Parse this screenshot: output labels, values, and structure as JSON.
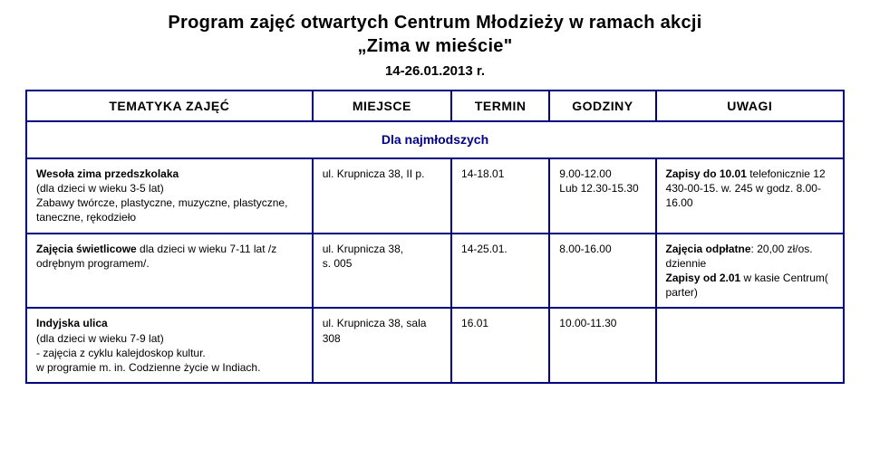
{
  "header": {
    "title_line1": "Program zajęć otwartych Centrum Młodzieży w ramach akcji",
    "title_line2": "„Zima w mieście\"",
    "date_range": "14-26.01.2013 r."
  },
  "table": {
    "columns": [
      "TEMATYKA ZAJĘĆ",
      "MIEJSCE",
      "TERMIN",
      "GODZINY",
      "UWAGI"
    ],
    "section_label": "Dla najmłodszych",
    "rows": [
      {
        "topic_bold": "Wesoła zima przedszkolaka",
        "topic_rest": "(dla dzieci  w wieku 3-5 lat)\nZabawy twórcze, plastyczne, muzyczne,  plastyczne, taneczne, rękodzieło",
        "place": "ul. Krupnicza 38, II p.",
        "term": "14-18.01",
        "hours": "9.00-12.00\nLub 12.30-15.30",
        "notes_bold": "Zapisy do 10.01",
        "notes_rest": " telefonicznie 12 430-00-15. w. 245 w godz. 8.00-16.00"
      },
      {
        "topic_bold": "Zajęcia świetlicowe",
        "topic_rest": " dla dzieci w wieku 7-11 lat /z odrębnym programem/.",
        "place": "ul. Krupnicza 38,\ns. 005",
        "term": "14-25.01.",
        "hours": "8.00-16.00",
        "notes_html": true,
        "notes_b1": "Zajęcia odpłatne",
        "notes_t1": ": 20,00 zł/os. dziennie",
        "notes_b2": "Zapisy od 2.01",
        "notes_t2": " w kasie Centrum( parter)"
      },
      {
        "topic_bold": "Indyjska ulica",
        "topic_rest": "\n(dla dzieci w wieku 7-9 lat)\n- zajęcia z cyklu kalejdoskop kultur.\n w programie m. in. Codzienne życie w Indiach.",
        "place": "ul. Krupnicza 38, sala 308",
        "term": "16.01",
        "hours": "10.00-11.30",
        "notes_bold": "",
        "notes_rest": ""
      }
    ],
    "border_color": "#000080",
    "header_text_color": "#000000",
    "section_text_color": "#000080",
    "background": "#ffffff"
  }
}
